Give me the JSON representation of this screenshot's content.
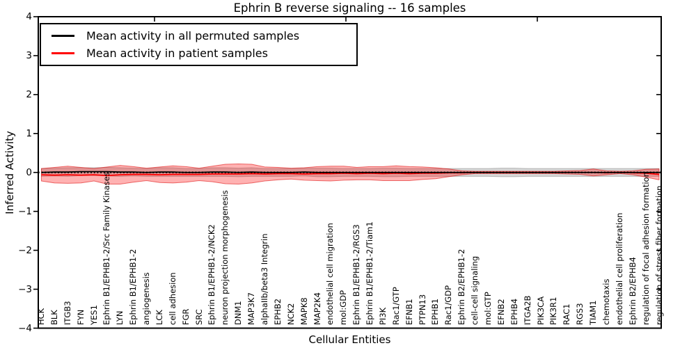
{
  "title": "Ephrin B reverse signaling -- 16 samples",
  "legend": {
    "items": [
      {
        "label": "Mean activity in all permuted samples",
        "color": "#000000"
      },
      {
        "label": "Mean activity in patient samples",
        "color": "#ff0000"
      }
    ]
  },
  "chart_data": {
    "type": "line",
    "title": "Ephrin B reverse signaling -- 16 samples",
    "xlabel": "Cellular Entities",
    "ylabel": "Inferred Activity",
    "ylim": [
      -4,
      4
    ],
    "ytick_labels": [
      "4",
      "3",
      "2",
      "1",
      "0",
      "−1",
      "−2",
      "−3",
      "−4"
    ],
    "ytick_values": [
      4,
      3,
      2,
      1,
      0,
      -1,
      -2,
      -3,
      -4
    ],
    "grid": false,
    "legend_position": "upper left",
    "categories": [
      "HCK",
      "BLK",
      "ITGB3",
      "FYN",
      "YES1",
      "Ephrin B1/EPHB1-2/Src Family Kinases",
      "LYN",
      "Ephrin B1/EPHB1-2",
      "angiogenesis",
      "LCK",
      "cell adhesion",
      "FGR",
      "SRC",
      "Ephrin B1/EPHB1-2/NCK2",
      "neuron projection morphogenesis",
      "DNM1",
      "MAP3K7",
      "alphaIIb/beta3 Integrin",
      "EPHB2",
      "NCK2",
      "MAPK8",
      "MAP2K4",
      "endothelial cell migration",
      "mol:GDP",
      "Ephrin B1/EPHB1-2/RGS3",
      "Ephrin B1/EPHB1-2/Tiam1",
      "PI3K",
      "Rac1/GTP",
      "EFNB1",
      "PTPN13",
      "EPHB1",
      "Rac1/GDP",
      "Ephrin B2/EPHB1-2",
      "cell-cell signaling",
      "mol:GTP",
      "EFNB2",
      "EPHB4",
      "ITGA2B",
      "PIK3CA",
      "PIK3R1",
      "RAC1",
      "RGS3",
      "TIAM1",
      "chemotaxis",
      "endothelial cell proliferation",
      "Ephrin B2/EPHB4",
      "regulation of focal adhesion formation",
      "regulation of stress fiber formation"
    ],
    "series": [
      {
        "name": "Mean activity in all permuted samples",
        "color": "#000000",
        "values": [
          0.0,
          0.01,
          0.01,
          0.02,
          0.02,
          0.02,
          0.01,
          0.01,
          0.0,
          0.01,
          0.01,
          0.0,
          0.0,
          0.01,
          0.01,
          0.0,
          0.01,
          0.0,
          0.0,
          0.0,
          0.01,
          0.0,
          0.0,
          0.0,
          0.0,
          0.0,
          0.0,
          0.0,
          0.0,
          0.0,
          0.0,
          0.0,
          0.0,
          0.0,
          0.0,
          0.0,
          0.0,
          0.0,
          0.0,
          0.0,
          0.0,
          0.0,
          0.0,
          0.0,
          0.0,
          0.0,
          0.0,
          0.0
        ]
      },
      {
        "name": "Mean activity in patient samples",
        "color": "#ff0000",
        "values": [
          -0.06,
          -0.07,
          -0.06,
          -0.07,
          -0.06,
          -0.08,
          -0.06,
          -0.05,
          -0.05,
          -0.06,
          -0.05,
          -0.05,
          -0.05,
          -0.04,
          -0.04,
          -0.04,
          -0.03,
          -0.04,
          -0.03,
          -0.03,
          -0.04,
          -0.03,
          -0.03,
          -0.02,
          -0.03,
          -0.02,
          -0.03,
          -0.02,
          -0.03,
          -0.02,
          -0.02,
          -0.01,
          -0.01,
          0.0,
          0.0,
          0.0,
          0.0,
          0.0,
          0.0,
          0.0,
          0.0,
          0.0,
          0.0,
          -0.01,
          0.0,
          -0.01,
          -0.02,
          -0.05
        ]
      }
    ],
    "bands": [
      {
        "name": "permuted-std-band",
        "center_series": 0,
        "fill": "#787878",
        "fill_alpha": 0.3,
        "edge": "#787878",
        "edge_alpha": 0.45,
        "halfwidths": [
          0.1,
          0.1,
          0.11,
          0.1,
          0.1,
          0.11,
          0.11,
          0.1,
          0.1,
          0.11,
          0.11,
          0.1,
          0.1,
          0.11,
          0.11,
          0.11,
          0.11,
          0.1,
          0.1,
          0.1,
          0.1,
          0.11,
          0.11,
          0.1,
          0.1,
          0.1,
          0.11,
          0.11,
          0.1,
          0.1,
          0.1,
          0.1,
          0.1,
          0.1,
          0.1,
          0.11,
          0.11,
          0.1,
          0.1,
          0.1,
          0.1,
          0.1,
          0.1,
          0.1,
          0.1,
          0.1,
          0.1,
          0.1
        ]
      },
      {
        "name": "patient-std-band",
        "center_series": 1,
        "fill": "#ff0000",
        "fill_alpha": 0.3,
        "edge": "#dc0000",
        "edge_alpha": 0.55,
        "halfwidths": [
          0.16,
          0.2,
          0.22,
          0.2,
          0.16,
          0.22,
          0.24,
          0.2,
          0.16,
          0.2,
          0.22,
          0.2,
          0.16,
          0.2,
          0.25,
          0.26,
          0.24,
          0.18,
          0.16,
          0.14,
          0.16,
          0.18,
          0.19,
          0.18,
          0.16,
          0.17,
          0.18,
          0.19,
          0.18,
          0.16,
          0.14,
          0.1,
          0.05,
          0.03,
          0.03,
          0.03,
          0.03,
          0.03,
          0.03,
          0.03,
          0.04,
          0.05,
          0.09,
          0.05,
          0.03,
          0.05,
          0.1,
          0.14
        ]
      }
    ],
    "zero_line": {
      "value": 0,
      "style": "dotted",
      "color": "#000000"
    }
  }
}
